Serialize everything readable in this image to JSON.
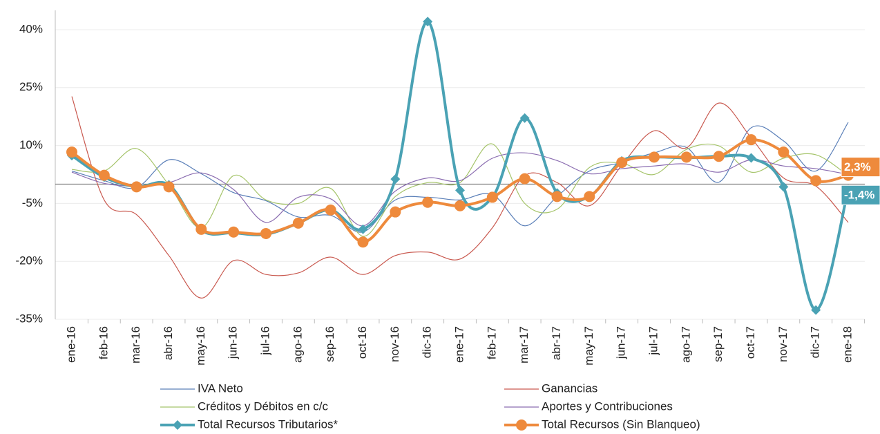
{
  "chart_data": {
    "type": "line",
    "categories": [
      "ene-16",
      "feb-16",
      "mar-16",
      "abr-16",
      "may-16",
      "jun-16",
      "jul-16",
      "ago-16",
      "sep-16",
      "oct-16",
      "nov-16",
      "dic-16",
      "ene-17",
      "feb-17",
      "mar-17",
      "abr-17",
      "may-17",
      "jun-17",
      "jul-17",
      "ago-17",
      "sep-17",
      "oct-17",
      "nov-17",
      "dic-17",
      "ene-18"
    ],
    "ylim": [
      -35,
      45
    ],
    "yticks": [
      {
        "value": 40,
        "label": "40%"
      },
      {
        "value": 25,
        "label": "25%"
      },
      {
        "value": 10,
        "label": "10%"
      },
      {
        "value": -5,
        "label": "-5%"
      },
      {
        "value": -20,
        "label": "-20%"
      },
      {
        "value": -35,
        "label": "-35%"
      }
    ],
    "grid": true,
    "series": [
      {
        "name": "IVA Neto",
        "color": "#5a7fb8",
        "width": 1.2,
        "values": [
          3.4,
          0.9,
          -0.9,
          6.3,
          2.7,
          -2.2,
          -4.3,
          -8.5,
          -8.1,
          -12.4,
          -4.1,
          -3.4,
          -4.1,
          -2.7,
          -10.8,
          -3.2,
          3.4,
          5.6,
          8.1,
          9.5,
          0.5,
          14.6,
          11.2,
          3.4,
          16
        ]
      },
      {
        "name": "Ganancias",
        "color": "#c9594f",
        "width": 1.2,
        "values": [
          22.7,
          -4.1,
          -7.9,
          -18.5,
          -29.5,
          -19.8,
          -23.4,
          -23,
          -18.9,
          -23.4,
          -18.5,
          -17.6,
          -19.4,
          -11.3,
          2.2,
          0.4,
          -5.6,
          4.9,
          13.8,
          9.4,
          21,
          12,
          1.6,
          -0.5,
          -9.9
        ]
      },
      {
        "name": "Créditos y Débitos en c/c",
        "color": "#a5c46a",
        "width": 1.2,
        "values": [
          3.8,
          3.4,
          9.2,
          -0.2,
          -11.3,
          2.2,
          -4.1,
          -5,
          -1.1,
          -13.5,
          -3.2,
          0.4,
          0.4,
          10.4,
          -5,
          -6.5,
          4.3,
          5.4,
          2.5,
          9,
          9.9,
          3.1,
          6.7,
          7.6,
          2.2
        ]
      },
      {
        "name": "Aportes y Contribuciones",
        "color": "#8a6cb0",
        "width": 1.2,
        "values": [
          3.1,
          0.2,
          -0.5,
          0.4,
          2.9,
          -1.4,
          -9.9,
          -3.4,
          -3.8,
          -10.8,
          -1.8,
          1.6,
          0.9,
          6.7,
          8.1,
          6.1,
          2.7,
          4,
          4.7,
          5.2,
          3.1,
          6.3,
          4.7,
          4,
          2.5
        ]
      },
      {
        "name": "Total Recursos Tributarios*",
        "color": "#4aa2b4",
        "width": 4,
        "marker": "diamond",
        "values": [
          7.4,
          1.8,
          -0.7,
          -0.2,
          -11.9,
          -12.6,
          -13,
          -10.1,
          -6.7,
          -11.7,
          1.3,
          42.1,
          -1.6,
          -3.4,
          17.1,
          -2.3,
          -3.2,
          6,
          7,
          6.8,
          7.2,
          6.8,
          -0.7,
          -32.6,
          -1.4
        ],
        "value_labels": [
          null,
          null,
          null,
          null,
          null,
          null,
          null,
          null,
          null,
          null,
          null,
          null,
          null,
          null,
          null,
          null,
          null,
          null,
          null,
          null,
          null,
          null,
          null,
          null,
          "-1,4%"
        ]
      },
      {
        "name": "Total Recursos (Sin Blanqueo)",
        "color": "#ee8a3c",
        "width": 4,
        "marker": "circle",
        "values": [
          8.3,
          2.3,
          -0.7,
          -0.7,
          -11.7,
          -12.4,
          -12.8,
          -10.1,
          -6.7,
          -15,
          -7.2,
          -4.7,
          -5.6,
          -3.4,
          1.4,
          -3.2,
          -3.2,
          5.6,
          7,
          7,
          7.2,
          11.5,
          8.3,
          0.9,
          2.3
        ],
        "value_labels": [
          null,
          null,
          null,
          null,
          null,
          null,
          null,
          null,
          null,
          null,
          null,
          null,
          null,
          null,
          null,
          null,
          null,
          null,
          null,
          null,
          null,
          null,
          null,
          null,
          "2,3%"
        ]
      }
    ]
  }
}
